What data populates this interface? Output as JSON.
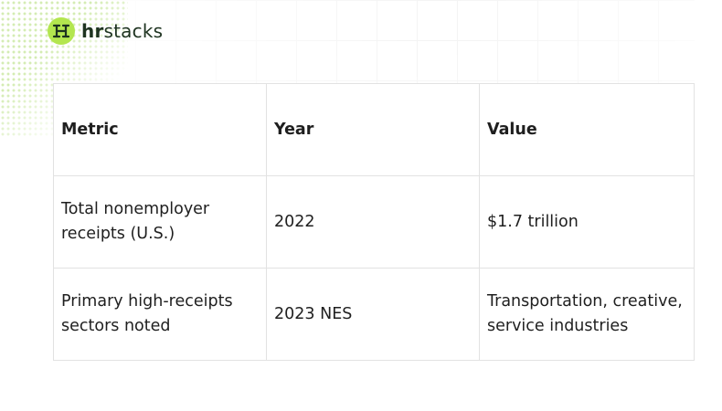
{
  "brand": {
    "name_bold": "hr",
    "name_rest": "stacks",
    "accent_color": "#b3e64f",
    "icon": "hr-logo-mark"
  },
  "table": {
    "headers": [
      "Metric",
      "Year",
      "Value"
    ],
    "rows": [
      [
        "Total nonemployer receipts (U.S.)",
        "2022",
        "$1.7 trillion"
      ],
      [
        "Primary high-receipts sectors noted",
        "2023 NES",
        "Transportation, creative, service industries"
      ]
    ]
  }
}
